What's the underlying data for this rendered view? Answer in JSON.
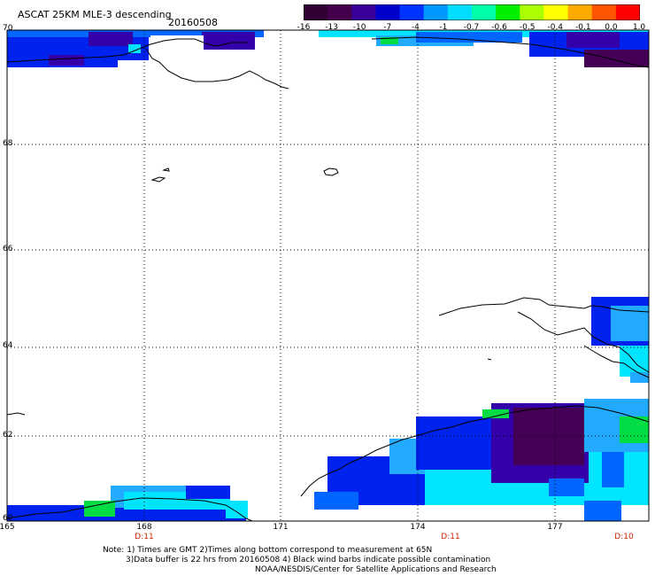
{
  "header": {
    "title": "ASCAT 25KM MLE-3 descending",
    "date": "20160508"
  },
  "colorbar": {
    "labels": [
      "-16",
      "-13",
      "-10",
      "-7",
      "-4",
      "-1",
      "-0.7",
      "-0.6",
      "-0.5",
      "-0.4",
      "-0.1",
      "0.0",
      "1.0"
    ],
    "colors": [
      "#330033",
      "#44004d",
      "#3a0099",
      "#0000cc",
      "#0033ff",
      "#0099ff",
      "#00ddff",
      "#00ffaa",
      "#00ee00",
      "#aaff00",
      "#ffff00",
      "#ffaa00",
      "#ff5500",
      "#ff0000"
    ]
  },
  "axes": {
    "lat_labels": [
      {
        "text": "70"
      },
      {
        "text": "68"
      },
      {
        "text": "66"
      },
      {
        "text": "64"
      },
      {
        "text": "62"
      },
      {
        "text": "60"
      }
    ],
    "lon_labels": [
      {
        "text": "165"
      },
      {
        "text": "168"
      },
      {
        "text": "171"
      },
      {
        "text": "174"
      },
      {
        "text": "177"
      }
    ],
    "time_labels": [
      {
        "text": "D:11"
      },
      {
        "text": "D:11"
      },
      {
        "text": "D:10"
      }
    ]
  },
  "notes": {
    "line1": "Note: 1) Times are GMT 2)Times along bottom correspond to measurement at 65N",
    "line2": "3)Data buffer is 22 hrs from 20160508 4) Black wind barbs indicate possible contamination",
    "line3": "NOAA/NESDIS/Center for Satellite Applications and Research"
  },
  "palette": {
    "dark_purple": "#440055",
    "purple": "#3300aa",
    "blue": "#0022ee",
    "mid_blue": "#0066ff",
    "light_blue": "#22aaff",
    "cyan": "#00e5ff",
    "green": "#00dd44",
    "land": "#ffffff",
    "coast": "#000000"
  }
}
